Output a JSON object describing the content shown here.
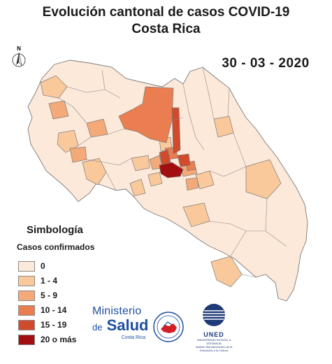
{
  "header": {
    "title_line1": "Evolución cantonal de casos COVID-19",
    "title_line2": "Costa Rica",
    "date": "30 - 03 - 2020"
  },
  "north_arrow": {
    "label": "N",
    "icon": "north-arrow-icon"
  },
  "legend": {
    "title": "Simbología",
    "subtitle": "Casos confirmados",
    "classes": [
      {
        "label": "0",
        "color": "#fde9d9"
      },
      {
        "label": "1 - 4",
        "color": "#f9c99c"
      },
      {
        "label": "5 - 9",
        "color": "#f3a978"
      },
      {
        "label": "10 - 14",
        "color": "#ea7e51"
      },
      {
        "label": "15 - 19",
        "color": "#d24a2c"
      },
      {
        "label": "20 o más",
        "color": "#a30f10"
      }
    ]
  },
  "logos": {
    "ministerio_line1": "Ministerio",
    "ministerio_de": "de",
    "ministerio_line2": "Salud",
    "ministerio_line3": "Costa Rica",
    "uned_mark": "UNED",
    "uned_sub1": "UNIVERSIDAD ESTATAL A DISTANCIA",
    "uned_sub2": "Instituto Iberoamericano de la Educación y la Cultura"
  }
}
